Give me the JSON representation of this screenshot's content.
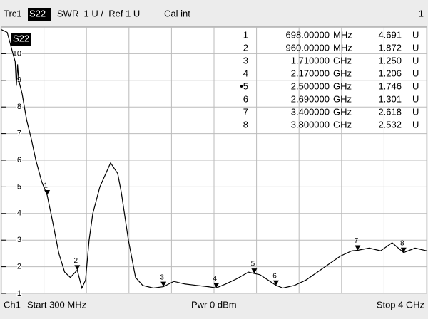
{
  "chart_data": {
    "type": "line",
    "header": {
      "trace": "Trc1",
      "parameter": "S22",
      "format": "SWR  1 U /  Ref 1 U",
      "cal": "Cal int",
      "channel_number": "1"
    },
    "trace_label": "S22",
    "footer": {
      "channel": "Ch1",
      "start": "Start 300 MHz",
      "power": "Pwr 0 dBm",
      "stop": "Stop 4 GHz"
    },
    "xlim": [
      300,
      4000
    ],
    "xticks": [
      300,
      670,
      1040,
      1410,
      1780,
      2150,
      2520,
      2890,
      3260,
      3630,
      4000
    ],
    "ylim": [
      1,
      11
    ],
    "yticks": [
      1,
      2,
      3,
      4,
      5,
      6,
      7,
      8,
      9,
      10
    ],
    "grid": true,
    "series": [
      {
        "name": "S22",
        "color": "#000000",
        "x": [
          300,
          350,
          400,
          420,
          430,
          440,
          450,
          480,
          520,
          560,
          600,
          650,
          698,
          750,
          800,
          850,
          900,
          960,
          1000,
          1032,
          1063,
          1095,
          1157,
          1219,
          1250,
          1280,
          1312,
          1343,
          1405,
          1467,
          1529,
          1622,
          1710,
          1800,
          1900,
          2000,
          2100,
          2170,
          2250,
          2350,
          2450,
          2500,
          2550,
          2620,
          2690,
          2750,
          2850,
          2950,
          3050,
          3150,
          3250,
          3350,
          3400,
          3500,
          3600,
          3700,
          3800,
          3900,
          4000
        ],
        "values": [
          10.9,
          10.8,
          10.0,
          9.7,
          8.8,
          9.6,
          9.0,
          8.5,
          7.5,
          6.8,
          6.0,
          5.2,
          4.691,
          3.6,
          2.5,
          1.8,
          1.6,
          1.872,
          1.2,
          1.5,
          3.0,
          4.0,
          5.0,
          5.6,
          5.9,
          5.7,
          5.5,
          4.8,
          3.0,
          1.6,
          1.3,
          1.2,
          1.25,
          1.45,
          1.35,
          1.3,
          1.25,
          1.206,
          1.35,
          1.55,
          1.8,
          1.746,
          1.7,
          1.5,
          1.301,
          1.2,
          1.3,
          1.5,
          1.8,
          2.1,
          2.4,
          2.6,
          2.618,
          2.7,
          2.6,
          2.9,
          2.532,
          2.7,
          2.6
        ]
      }
    ],
    "markers": [
      {
        "label": "1",
        "x": 698,
        "y": 4.691
      },
      {
        "label": "2",
        "x": 960,
        "y": 1.872
      },
      {
        "label": "3",
        "x": 1710,
        "y": 1.25
      },
      {
        "label": "4",
        "x": 2170,
        "y": 1.206
      },
      {
        "label": "5",
        "x": 2500,
        "y": 1.746
      },
      {
        "label": "6",
        "x": 2690,
        "y": 1.301
      },
      {
        "label": "7",
        "x": 3400,
        "y": 2.618
      },
      {
        "label": "8",
        "x": 3800,
        "y": 2.532
      }
    ],
    "marker_table": [
      [
        "1",
        "698.00000",
        "MHz",
        "4.691",
        "U"
      ],
      [
        "2",
        "960.00000",
        "MHz",
        "1.872",
        "U"
      ],
      [
        "3",
        "1.710000",
        "GHz",
        "1.250",
        "U"
      ],
      [
        "4",
        "2.170000",
        "GHz",
        "1.206",
        "U"
      ],
      [
        "•5",
        "2.500000",
        "GHz",
        "1.746",
        "U"
      ],
      [
        "6",
        "2.690000",
        "GHz",
        "1.301",
        "U"
      ],
      [
        "7",
        "3.400000",
        "GHz",
        "2.618",
        "U"
      ],
      [
        "8",
        "3.800000",
        "GHz",
        "2.532",
        "U"
      ]
    ]
  }
}
